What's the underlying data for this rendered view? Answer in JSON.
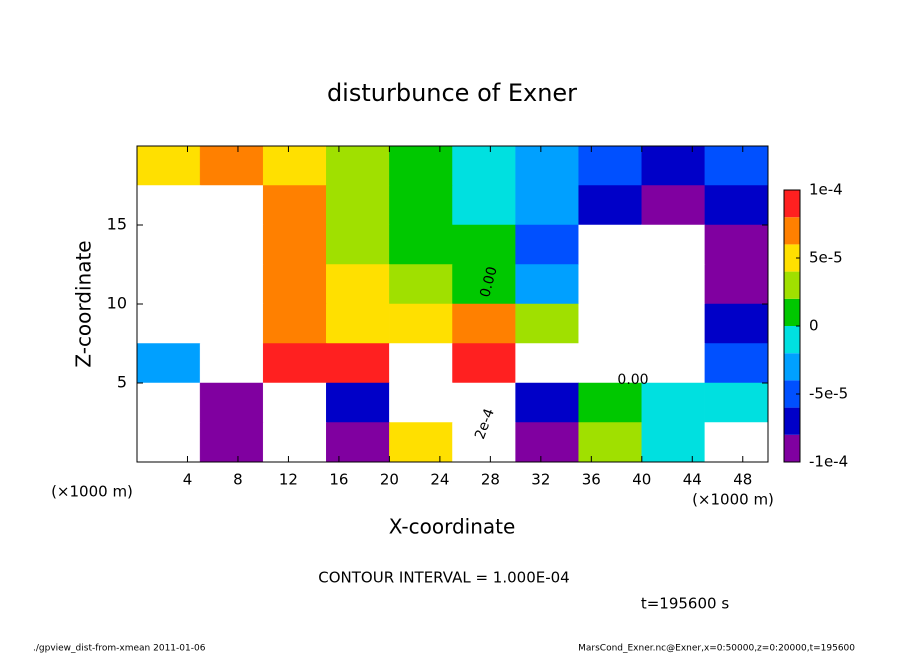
{
  "chart_data": {
    "type": "heatmap",
    "title": "disturbunce of Exner",
    "xlabel": "X-coordinate",
    "ylabel": "Z-coordinate",
    "x_unit_label": "(×1000 m)",
    "y_unit_label": "(×1000 m)",
    "x": [
      2.5,
      7.5,
      12.5,
      17.5,
      22.5,
      27.5,
      32.5,
      37.5,
      42.5,
      47.5
    ],
    "y": [
      18.75,
      16.25,
      13.75,
      11.25,
      8.75,
      6.25,
      3.75,
      1.25
    ],
    "z": [
      [
        6e-05,
        7e-05,
        6e-05,
        4e-05,
        2e-05,
        0,
        -3e-05,
        -5e-05,
        -6e-05,
        -4e-05
      ],
      [
        0.00012,
        0.00012,
        7e-05,
        4e-05,
        2e-05,
        0,
        -3e-05,
        -7e-05,
        -9e-05,
        -6e-05
      ],
      [
        0.00012,
        0.00012,
        8e-05,
        4e-05,
        2e-05,
        1e-05,
        -4e-05,
        -0.00012,
        -0.00012,
        -8e-05
      ],
      [
        0.00012,
        0.00012,
        8e-05,
        5e-05,
        3e-05,
        2e-05,
        -2e-05,
        -0.00012,
        -0.00012,
        -8e-05
      ],
      [
        0.00012,
        0.00011,
        8e-05,
        6e-05,
        6e-05,
        8e-05,
        4e-05,
        -0.00012,
        -0.00012,
        -7e-05
      ],
      [
        -3e-05,
        0.00012,
        0.0001,
        0.0001,
        0.00012,
        0.0001,
        0.00012,
        -0.00012,
        -0.00012,
        -5e-05
      ],
      [
        0.00012,
        -8e-05,
        0.00012,
        -6e-05,
        0.00012,
        0.00012,
        -6e-05,
        2e-05,
        -1e-05,
        0
      ],
      [
        0.00012,
        -8e-05,
        0.00012,
        -9e-05,
        6e-05,
        0.00012,
        -8e-05,
        3e-05,
        0,
        0.00012
      ]
    ],
    "xlim": [
      0,
      50
    ],
    "ylim": [
      0,
      20
    ],
    "xticks": [
      4,
      8,
      12,
      16,
      20,
      24,
      28,
      32,
      36,
      40,
      44,
      48
    ],
    "yticks": [
      5,
      10,
      15
    ],
    "clevels": [
      -0.0001,
      -8e-05,
      -6e-05,
      -4e-05,
      -2e-05,
      0,
      2e-05,
      4e-05,
      6e-05,
      8e-05,
      0.0001
    ],
    "colors": [
      "#8000a0",
      "#0000c8",
      "#0050ff",
      "#00a0ff",
      "#00e0e0",
      "#00c800",
      "#a0e000",
      "#ffe000",
      "#ff8000",
      "#ff2020"
    ],
    "out_of_range_color": "#ffffff",
    "cticks": [
      {
        "value": 0.0001,
        "label": "1e-4"
      },
      {
        "value": 5e-05,
        "label": "5e-5"
      },
      0,
      {
        "value": -5e-05,
        "label": "-5e-5"
      },
      {
        "value": -0.0001,
        "label": "-1e-4"
      }
    ],
    "annotations": [
      "0.00",
      "2e-4",
      "0.00"
    ],
    "contour_interval": "CONTOUR INTERVAL = 1.000E-04",
    "time_label": "t=195600 s",
    "footer_left": "./gpview_dist-from-xmean  2011-01-06",
    "footer_right": "MarsCond_Exner.nc@Exner,x=0:50000,z=0:20000,t=195600"
  }
}
